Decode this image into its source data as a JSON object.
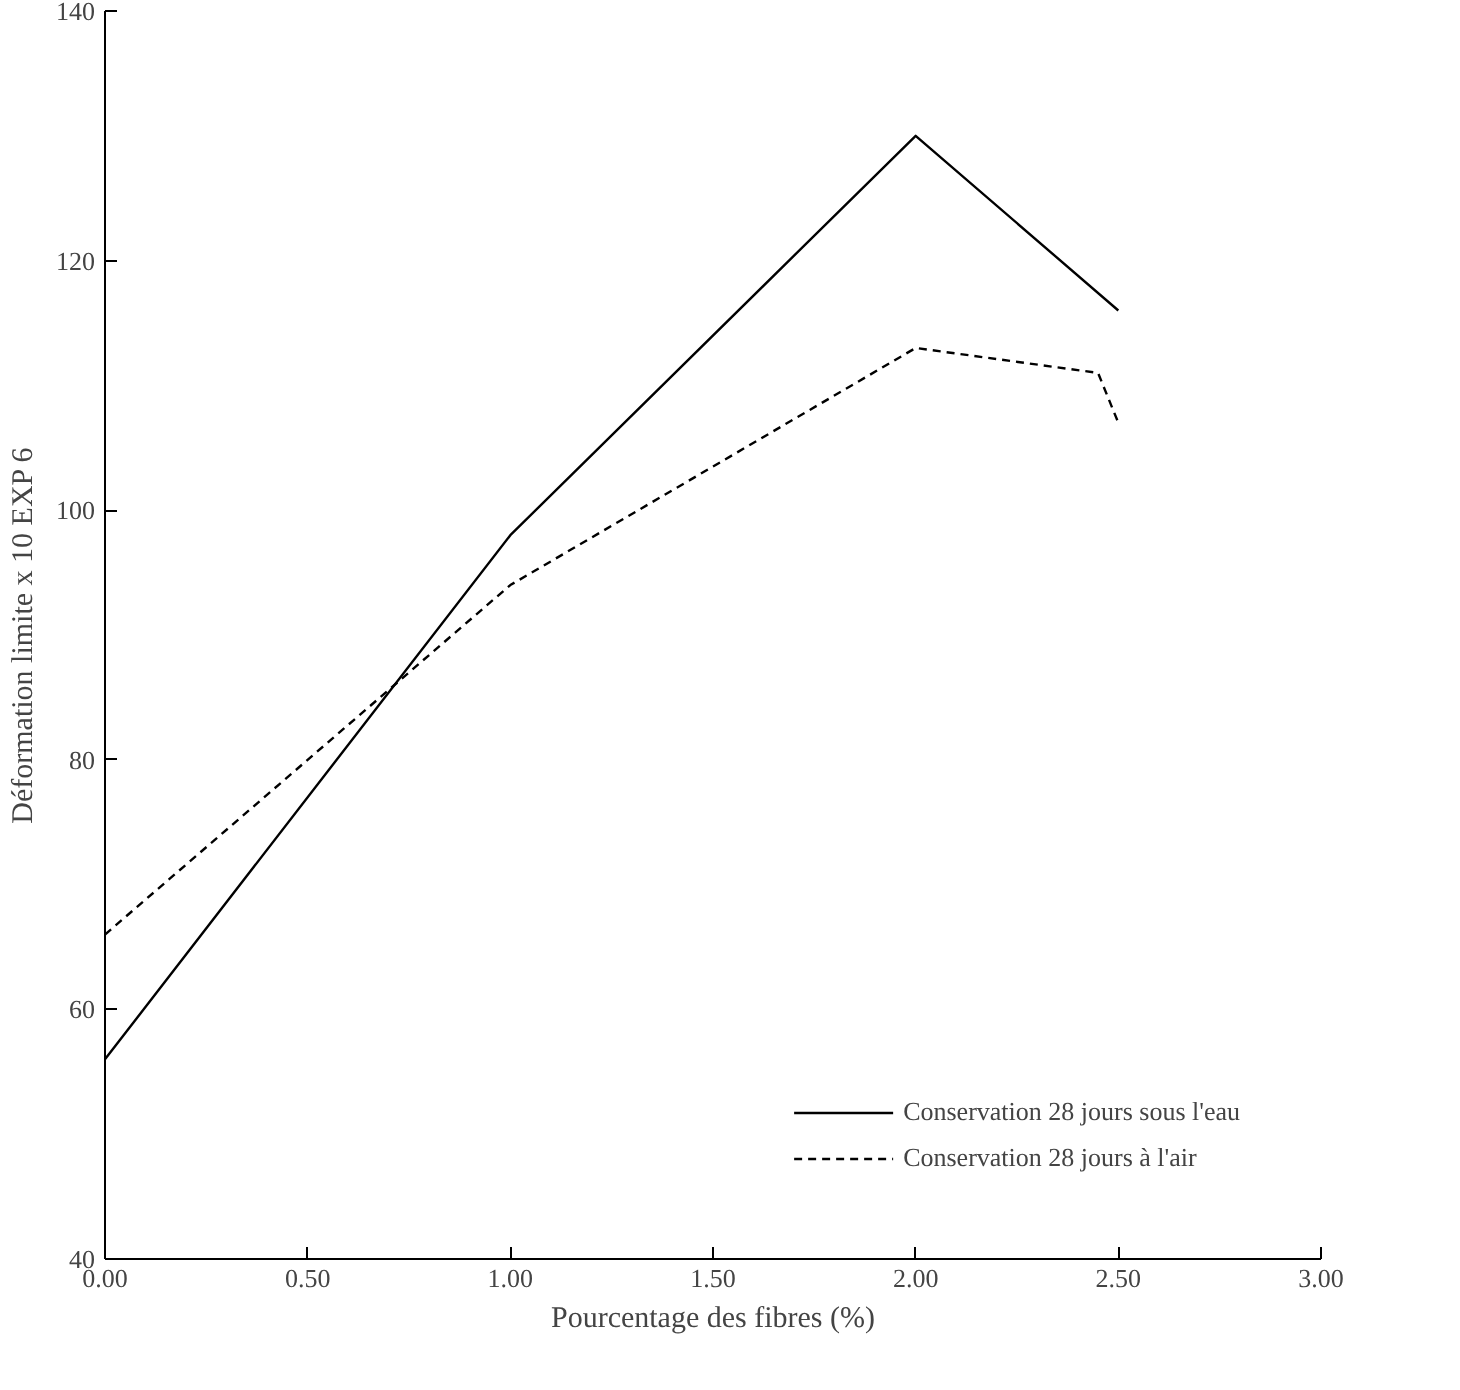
{
  "chart_data": {
    "type": "line",
    "xlabel": "Pourcentage des fibres (%)",
    "ylabel": "Déformation limite x 10 EXP 6",
    "xlim": [
      0,
      3
    ],
    "ylim": [
      40,
      140
    ],
    "xticks": [
      {
        "value": 0,
        "label": "0.00"
      },
      {
        "value": 0.5,
        "label": "0.50"
      },
      {
        "value": 1,
        "label": "1.00"
      },
      {
        "value": 1.5,
        "label": "1.50"
      },
      {
        "value": 2,
        "label": "2.00"
      },
      {
        "value": 2.5,
        "label": "2.50"
      },
      {
        "value": 3,
        "label": "3.00"
      }
    ],
    "yticks": [
      40,
      60,
      80,
      100,
      120,
      140
    ],
    "grid": false,
    "legend": "bottom right",
    "series": [
      {
        "name": "Conservation 28 jours sous l'eau",
        "color": "#000000",
        "line_style": "solid",
        "x": [
          0,
          1,
          2,
          2.5
        ],
        "values": [
          56,
          98,
          130,
          116
        ]
      },
      {
        "name": "Conservation 28 jours à l'air",
        "color": "#000000",
        "line_style": "dashed",
        "x": [
          0,
          1,
          2,
          2.45,
          2.5
        ],
        "values": [
          66,
          94,
          113,
          111,
          107
        ]
      }
    ]
  }
}
